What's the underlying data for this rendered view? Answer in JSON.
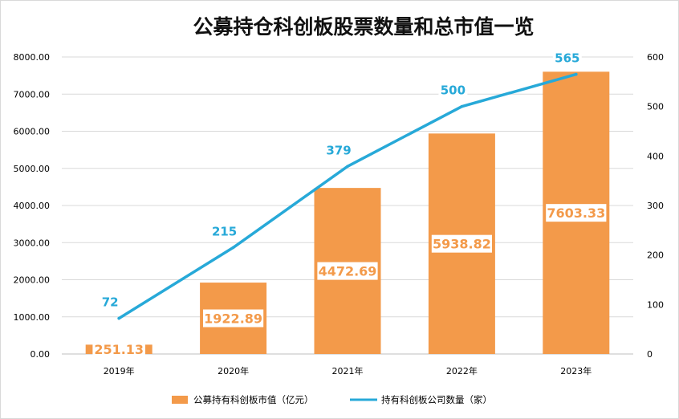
{
  "chart_data": {
    "type": "bar",
    "title": "公募持仓科创板股票数量和总市值一览",
    "categories": [
      "2019年",
      "2020年",
      "2021年",
      "2022年",
      "2023年"
    ],
    "series": [
      {
        "name": "公募持有科创板市值（亿元）",
        "type": "bar",
        "axis": "left",
        "values": [
          251.13,
          1922.89,
          4472.69,
          5938.82,
          7603.33
        ],
        "labels": [
          "251.13",
          "1922.89",
          "4472.69",
          "5938.82",
          "7603.33"
        ]
      },
      {
        "name": "持有科创板公司数量（家）",
        "type": "line",
        "axis": "right",
        "values": [
          72,
          215,
          379,
          500,
          565
        ],
        "labels": [
          "72",
          "215",
          "379",
          "500",
          "565"
        ]
      }
    ],
    "left_axis": {
      "ylim": [
        0,
        8000
      ],
      "ticks": [
        "0.00",
        "1000.00",
        "2000.00",
        "3000.00",
        "4000.00",
        "5000.00",
        "6000.00",
        "7000.00",
        "8000.00"
      ]
    },
    "right_axis": {
      "ylim": [
        0,
        600
      ],
      "ticks": [
        "0",
        "100",
        "200",
        "300",
        "400",
        "500",
        "600"
      ]
    },
    "grid": true,
    "legend_position": "bottom-center",
    "colors": {
      "bar": "#f39a4a",
      "line": "#27a9d8",
      "grid": "#d9d9d9"
    }
  }
}
